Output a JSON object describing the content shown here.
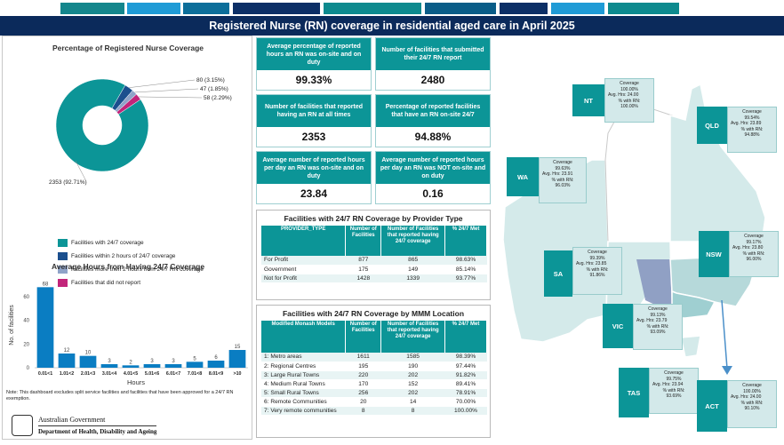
{
  "header": {
    "title": "Registered Nurse (RN) coverage in residential aged care in April 2025"
  },
  "pie": {
    "title": "Percentage of Registered Nurse Coverage",
    "slices": [
      {
        "label": "2353 (92.71%)",
        "value": 2353,
        "color": "#0c9597"
      },
      {
        "label": "80 (3.15%)",
        "value": 80,
        "color": "#1b4f8e"
      },
      {
        "label": "47 (1.85%)",
        "value": 47,
        "color": "#8fa3c8"
      },
      {
        "label": "58 (2.29%)",
        "value": 58,
        "color": "#c2257a"
      }
    ],
    "legend": [
      {
        "label": "Facilities with 24/7 coverage",
        "color": "#0c9597"
      },
      {
        "label": "Facilities within 2 hours of 24/7 coverage",
        "color": "#1b4f8e"
      },
      {
        "label": "Facilities more then 2 hours from 24/7 RN coverage",
        "color": "#8fa3c8"
      },
      {
        "label": "Facilities that did not report",
        "color": "#c2257a"
      }
    ]
  },
  "chart_data": {
    "type": "bar",
    "title": "Average Hours from Having 24/7 Coverage",
    "xlabel": "Hours",
    "ylabel": "No. of facilities",
    "categories": [
      "0.01<1",
      "1.01<2",
      "2.01<3",
      "3.01<4",
      "4.01<5",
      "5.01<6",
      "6.01<7",
      "7.01<8",
      "8.01<9",
      ">10"
    ],
    "values": [
      68,
      12,
      10,
      3,
      2,
      3,
      3,
      5,
      6,
      15
    ],
    "yticks": [
      0,
      20,
      40,
      60
    ],
    "ylim": [
      0,
      72
    ],
    "color": "#0a7dc2"
  },
  "note": "Note: This dashboard excludes split service facilities and facilities that have been approved for a 24/7 RN exemption.",
  "govt": {
    "line1": "Australian Government",
    "line2": "Department of Health, Disability and Ageing",
    "crest": "crest"
  },
  "kpis": [
    {
      "label": "Average percentage of reported hours an RN was on-site and on duty",
      "value": "99.33%"
    },
    {
      "label": "Number of facilities that submitted their 24/7 RN report",
      "value": "2480"
    },
    {
      "label": "Number of facilities that reported having an RN at all times",
      "value": "2353"
    },
    {
      "label": "Percentage of reported facilities that have an RN on-site 24/7",
      "value": "94.88%"
    },
    {
      "label": "Average number of reported hours per day an RN was on-site and on duty",
      "value": "23.84"
    },
    {
      "label": "Average number of reported hours per day an RN was NOT on-site and on duty",
      "value": "0.16"
    }
  ],
  "provider_table": {
    "title": "Facilities with 24/7 RN Coverage by Provider Type",
    "headers": [
      "PROVIDER_TYPE",
      "Number of Facilities",
      "Number of Facilities that reported having 24/7 coverage",
      "% 24/7 Met"
    ],
    "rows": [
      [
        "For Profit",
        "877",
        "865",
        "98.63%"
      ],
      [
        "Government",
        "175",
        "149",
        "85.14%"
      ],
      [
        "Not for Profit",
        "1428",
        "1339",
        "93.77%"
      ]
    ]
  },
  "mmm_table": {
    "title": "Facilities with 24/7 RN Coverage by MMM Location",
    "headers": [
      "Modified Monash Models",
      "Number of Facilities",
      "Number of Facilities that reported having 24/7 coverage",
      "% 24/7 Met"
    ],
    "rows": [
      [
        "1: Metro areas",
        "1611",
        "1585",
        "98.39%"
      ],
      [
        "2: Regional Centres",
        "195",
        "190",
        "97.44%"
      ],
      [
        "3: Large Rural Towns",
        "220",
        "202",
        "91.82%"
      ],
      [
        "4: Medium Rural Towns",
        "170",
        "152",
        "89.41%"
      ],
      [
        "5: Small Rural Towns",
        "256",
        "202",
        "78.91%"
      ],
      [
        "6: Remote Communities",
        "20",
        "14",
        "70.00%"
      ],
      [
        "7: Very remote communities",
        "8",
        "8",
        "100.00%"
      ]
    ]
  },
  "map": {
    "coverage_label": "Coverage",
    "hrs_label": "Avg. Hrs:",
    "rn_label": "% with RN:",
    "states": [
      {
        "code": "NT",
        "coverage": "100.00%",
        "hrs": "24.00",
        "rn": "100.00%"
      },
      {
        "code": "QLD",
        "coverage": "99.54%",
        "hrs": "23.89",
        "rn": "94.88%"
      },
      {
        "code": "WA",
        "coverage": "99.63%",
        "hrs": "23.91",
        "rn": "96.03%"
      },
      {
        "code": "SA",
        "coverage": "99.39%",
        "hrs": "23.85",
        "rn": "91.86%"
      },
      {
        "code": "NSW",
        "coverage": "99.17%",
        "hrs": "23.80",
        "rn": "96.00%"
      },
      {
        "code": "VIC",
        "coverage": "99.13%",
        "hrs": "23.79",
        "rn": "93.09%"
      },
      {
        "code": "TAS",
        "coverage": "99.75%",
        "hrs": "23.94",
        "rn": "93.69%"
      },
      {
        "code": "ACT",
        "coverage": "100.00%",
        "hrs": "24.00",
        "rn": "90.10%"
      }
    ]
  }
}
